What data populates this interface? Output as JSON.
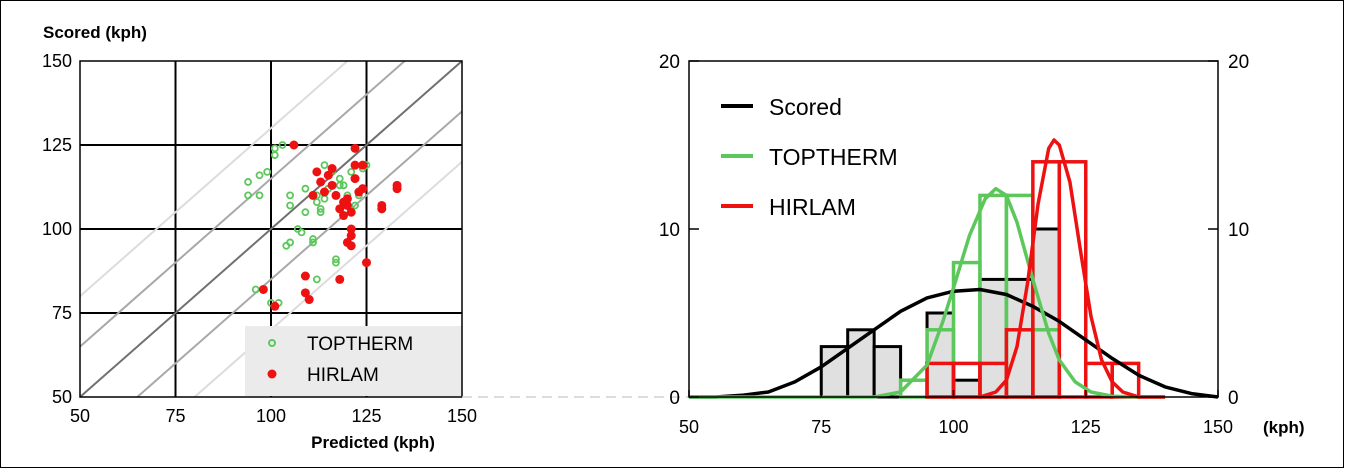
{
  "chart_data": [
    {
      "type": "scatter",
      "ylabel": "Scored (kph)",
      "xlabel": "Predicted (kph)",
      "xlim": [
        50,
        150
      ],
      "ylim": [
        50,
        150
      ],
      "xticks": [
        "50",
        "75",
        "100",
        "125",
        "150"
      ],
      "yticks": [
        "50",
        "75",
        "100",
        "125",
        "150"
      ],
      "grid": true,
      "legend_placement": "bottom-right",
      "series": [
        {
          "name": "TOPTHERM",
          "marker": "open-circle",
          "color": "#5cc85c",
          "points": [
            [
              94,
              114
            ],
            [
              94,
              110
            ],
            [
              97,
              116
            ],
            [
              97,
              110
            ],
            [
              99,
              117
            ],
            [
              101,
              124
            ],
            [
              101,
              122
            ],
            [
              103,
              125
            ],
            [
              106,
              125
            ],
            [
              100,
              78
            ],
            [
              102,
              78
            ],
            [
              104,
              95
            ],
            [
              105,
              96
            ],
            [
              105,
              107
            ],
            [
              105,
              110
            ],
            [
              107,
              100
            ],
            [
              108,
              99
            ],
            [
              109,
              105
            ],
            [
              109,
              112
            ],
            [
              110,
              79
            ],
            [
              111,
              97
            ],
            [
              111,
              96
            ],
            [
              112,
              110
            ],
            [
              113,
              105
            ],
            [
              113,
              106
            ],
            [
              114,
              109
            ],
            [
              114,
              119
            ],
            [
              115,
              112
            ],
            [
              116,
              117
            ],
            [
              117,
              91
            ],
            [
              117,
              90
            ],
            [
              118,
              113
            ],
            [
              118,
              115
            ],
            [
              119,
              113
            ],
            [
              120,
              110
            ],
            [
              121,
              117
            ],
            [
              122,
              107
            ],
            [
              123,
              110
            ],
            [
              124,
              118
            ],
            [
              125,
              119
            ],
            [
              112,
              85
            ],
            [
              112,
              108
            ],
            [
              96,
              82
            ]
          ]
        },
        {
          "name": "HIRLAM",
          "marker": "filled-circle",
          "color": "#ee1111",
          "points": [
            [
              98,
              82
            ],
            [
              101,
              77
            ],
            [
              106,
              125
            ],
            [
              109,
              86
            ],
            [
              109,
              81
            ],
            [
              110,
              79
            ],
            [
              111,
              110
            ],
            [
              112,
              117
            ],
            [
              113,
              114
            ],
            [
              114,
              111
            ],
            [
              115,
              116
            ],
            [
              116,
              113
            ],
            [
              116,
              118
            ],
            [
              117,
              110
            ],
            [
              118,
              85
            ],
            [
              119,
              108
            ],
            [
              120,
              107
            ],
            [
              120,
              109
            ],
            [
              120,
              96
            ],
            [
              121,
              95
            ],
            [
              121,
              98
            ],
            [
              121,
              100
            ],
            [
              121,
              105
            ],
            [
              122,
              124
            ],
            [
              122,
              115
            ],
            [
              122,
              119
            ],
            [
              123,
              111
            ],
            [
              124,
              112
            ],
            [
              124,
              119
            ],
            [
              125,
              90
            ],
            [
              129,
              106
            ],
            [
              129,
              107
            ],
            [
              133,
              113
            ],
            [
              133,
              112
            ],
            [
              119,
              104
            ],
            [
              118,
              106
            ]
          ]
        }
      ]
    },
    {
      "type": "histogram",
      "xlabel": "(kph)",
      "xlim": [
        50,
        150
      ],
      "ylim": [
        0,
        20
      ],
      "xticks": [
        "50",
        "75",
        "100",
        "125",
        "150"
      ],
      "yticks": [
        "0",
        "10",
        "20"
      ],
      "y2ticks": [
        "0",
        "10",
        "20"
      ],
      "grid": false,
      "legend_placement": "top-left",
      "bin_width": 5,
      "series": [
        {
          "name": "Scored",
          "color": "#000000",
          "fill": "#e0e0e0",
          "bins": [
            [
              75,
              3
            ],
            [
              80,
              4
            ],
            [
              85,
              3
            ],
            [
              90,
              0
            ],
            [
              95,
              5
            ],
            [
              100,
              1
            ],
            [
              105,
              7
            ],
            [
              110,
              7
            ],
            [
              115,
              10
            ],
            [
              120,
              0
            ]
          ],
          "curve": [
            [
              50,
              0
            ],
            [
              55,
              0
            ],
            [
              60,
              0.1
            ],
            [
              65,
              0.3
            ],
            [
              70,
              0.9
            ],
            [
              75,
              1.8
            ],
            [
              80,
              2.9
            ],
            [
              85,
              4.0
            ],
            [
              90,
              5.1
            ],
            [
              95,
              5.9
            ],
            [
              100,
              6.3
            ],
            [
              105,
              6.4
            ],
            [
              110,
              6.1
            ],
            [
              115,
              5.4
            ],
            [
              120,
              4.5
            ],
            [
              125,
              3.4
            ],
            [
              130,
              2.3
            ],
            [
              135,
              1.3
            ],
            [
              140,
              0.6
            ],
            [
              145,
              0.2
            ],
            [
              150,
              0
            ]
          ]
        },
        {
          "name": "TOPTHERM",
          "color": "#5cc85c",
          "bins": [
            [
              90,
              1
            ],
            [
              95,
              4
            ],
            [
              100,
              8
            ],
            [
              105,
              12
            ],
            [
              110,
              12
            ],
            [
              115,
              4
            ]
          ],
          "curve": [
            [
              50,
              0
            ],
            [
              85,
              0
            ],
            [
              90,
              0.3
            ],
            [
              95,
              1.9
            ],
            [
              98,
              4.5
            ],
            [
              100,
              6.5
            ],
            [
              103,
              9.6
            ],
            [
              106,
              11.8
            ],
            [
              108,
              12.4
            ],
            [
              110,
              12.0
            ],
            [
              112,
              10.4
            ],
            [
              115,
              7.0
            ],
            [
              118,
              3.8
            ],
            [
              120,
              2.2
            ],
            [
              123,
              0.9
            ],
            [
              126,
              0.3
            ],
            [
              130,
              0.05
            ],
            [
              135,
              0
            ],
            [
              140,
              0
            ]
          ]
        },
        {
          "name": "HIRLAM",
          "color": "#ee1111",
          "bins": [
            [
              95,
              2
            ],
            [
              100,
              2
            ],
            [
              105,
              2
            ],
            [
              110,
              4
            ],
            [
              115,
              14
            ],
            [
              120,
              14
            ],
            [
              125,
              2
            ],
            [
              130,
              2
            ]
          ],
          "curve": [
            [
              105,
              0
            ],
            [
              108,
              0.3
            ],
            [
              110,
              1.0
            ],
            [
              112,
              3.0
            ],
            [
              114,
              6.8
            ],
            [
              116,
              11.5
            ],
            [
              118,
              14.8
            ],
            [
              119,
              15.3
            ],
            [
              120,
              15.0
            ],
            [
              122,
              12.8
            ],
            [
              124,
              8.7
            ],
            [
              126,
              4.8
            ],
            [
              128,
              2.2
            ],
            [
              130,
              0.9
            ],
            [
              132,
              0.3
            ],
            [
              135,
              0
            ],
            [
              140,
              0
            ]
          ]
        }
      ]
    }
  ]
}
